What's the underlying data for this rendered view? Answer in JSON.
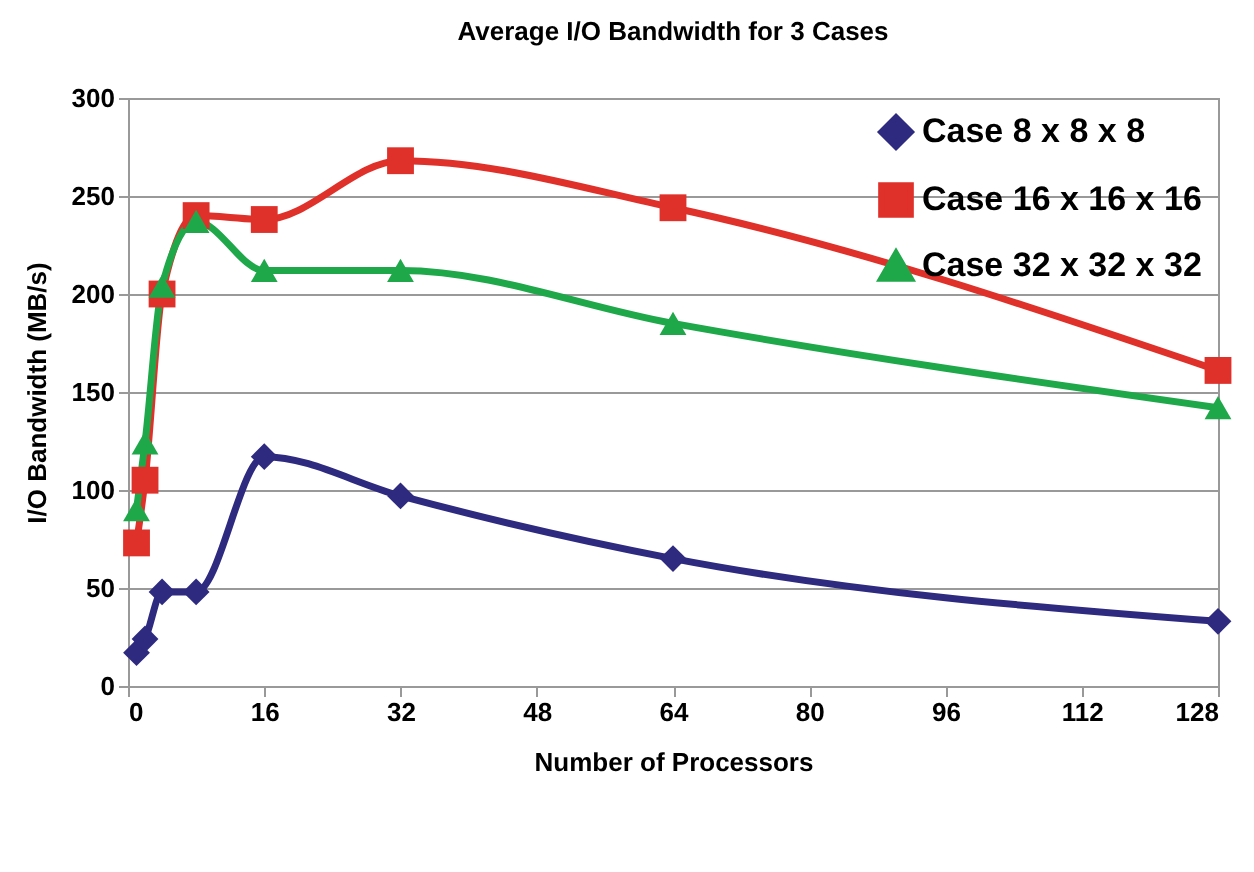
{
  "chart_data": {
    "type": "line",
    "title": "Average I/O Bandwidth for 3 Cases",
    "xlabel": "Number of Processors",
    "ylabel": "I/O Bandwidth (MB/s)",
    "x": [
      1,
      2,
      4,
      8,
      16,
      32,
      64,
      128
    ],
    "series": [
      {
        "name": "Case 8 x 8 x 8",
        "color": "#2e2a7f",
        "marker": "diamond",
        "values": [
          17,
          24,
          48,
          48,
          117,
          97,
          65,
          33
        ]
      },
      {
        "name": "Case 16 x 16 x 16",
        "color": "#e0302a",
        "marker": "square",
        "values": [
          73,
          105,
          200,
          240,
          238,
          268,
          244,
          161
        ]
      },
      {
        "name": "Case 32 x 32 x 32",
        "color": "#1fa84a",
        "marker": "triangle",
        "values": [
          90,
          124,
          204,
          237,
          212,
          212,
          185,
          142
        ]
      }
    ],
    "xlim": [
      0,
      128
    ],
    "xticks": [
      0,
      16,
      32,
      48,
      64,
      80,
      96,
      112,
      128
    ],
    "ylim": [
      0,
      300
    ],
    "yticks": [
      0,
      50,
      100,
      150,
      200,
      250,
      300
    ],
    "grid": "y",
    "legend": "top right",
    "line_style": "solid"
  }
}
